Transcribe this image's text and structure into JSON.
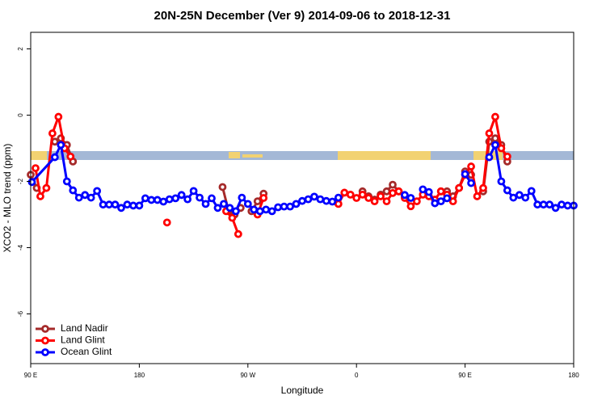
{
  "chart_data": {
    "type": "line",
    "title": "20N-25N December (Ver 9)   2014-09-06 to 2018-12-31",
    "x_label": "Longitude",
    "y_label": "XCO2 - MLO trend (ppm)",
    "xlim": [
      90,
      540
    ],
    "xticks": [
      {
        "value": 90,
        "label": "90 E"
      },
      180,
      {
        "value": 270,
        "label": "90 W"
      },
      {
        "value": 360,
        "label": "0"
      },
      {
        "value": 450,
        "label": "90 E"
      },
      {
        "value": 540,
        "label": "180"
      }
    ],
    "ylim": [
      -7.5,
      2.5
    ],
    "yticks": [
      2,
      0,
      -2,
      -4,
      -6
    ],
    "legend": "bottomleft",
    "series": [
      {
        "name": "Land Nadir",
        "color": "#a52a2a",
        "x": [
          90,
          95,
          100,
          110,
          115,
          120,
          125,
          130,
          249,
          254,
          259,
          264,
          268,
          273,
          278,
          283,
          288,
          365,
          370,
          375,
          380,
          385,
          390,
          395,
          400,
          405,
          430,
          435,
          440,
          445,
          450,
          455,
          460,
          465,
          470,
          475,
          480,
          485
        ],
        "values": [
          -1.8,
          -2.2,
          null,
          -0.8,
          -0.7,
          -0.9,
          -1.4,
          null,
          -2.17,
          -2.9,
          -3.0,
          -2.8,
          null,
          -2.9,
          -2.6,
          -2.37,
          null,
          -2.3,
          -2.45,
          -2.55,
          -2.4,
          -2.3,
          -2.1,
          -2.3,
          -2.45,
          null,
          -2.3,
          -2.3,
          -2.45,
          -2.2,
          -1.7,
          -1.8,
          null,
          -2.3,
          -0.8,
          -0.7,
          -0.9,
          -1.4
        ]
      },
      {
        "name": "Land Glint",
        "color": "#ff0000",
        "x": [
          94,
          98,
          103,
          108,
          113,
          118,
          123,
          128,
          203,
          208,
          252,
          257,
          262,
          267,
          278,
          283,
          288,
          345,
          350,
          355,
          360,
          365,
          370,
          375,
          380,
          385,
          390,
          395,
          400,
          405,
          410,
          415,
          420,
          425,
          430,
          435,
          440,
          445,
          450,
          455,
          460,
          465,
          470,
          475,
          480,
          485
        ],
        "values": [
          -1.6,
          -2.45,
          -2.2,
          -0.55,
          -0.05,
          -1.0,
          -1.25,
          null,
          -3.24,
          null,
          -2.9,
          -3.1,
          -3.59,
          null,
          -3.0,
          -2.5,
          null,
          -2.68,
          -2.34,
          -2.4,
          -2.5,
          -2.4,
          -2.5,
          -2.6,
          -2.45,
          -2.6,
          -2.35,
          -2.3,
          -2.5,
          -2.75,
          -2.6,
          -2.4,
          -2.45,
          -2.55,
          -2.3,
          -2.4,
          -2.6,
          -2.2,
          -1.8,
          -1.55,
          -2.45,
          -2.2,
          -0.55,
          -0.05,
          -1.0,
          -1.25
        ]
      },
      {
        "name": "Ocean Glint",
        "color": "#0000ff",
        "x": [
          91,
          110,
          115,
          120,
          125,
          130,
          135,
          140,
          145,
          150,
          155,
          160,
          165,
          170,
          175,
          180,
          185,
          190,
          195,
          200,
          205,
          210,
          215,
          220,
          225,
          230,
          235,
          240,
          245,
          250,
          255,
          260,
          265,
          270,
          275,
          280,
          285,
          290,
          295,
          300,
          305,
          310,
          315,
          320,
          325,
          330,
          335,
          340,
          345,
          350,
          400,
          405,
          410,
          415,
          420,
          425,
          430,
          435,
          440,
          450,
          455,
          460,
          470,
          475,
          480,
          485,
          490,
          495,
          500,
          505,
          510,
          515,
          520,
          525,
          530,
          535,
          540
        ],
        "values": [
          -2.02,
          -1.27,
          -0.9,
          -2.0,
          -2.27,
          -2.49,
          -2.41,
          -2.49,
          -2.29,
          -2.7,
          -2.7,
          -2.7,
          -2.8,
          -2.7,
          -2.73,
          -2.73,
          -2.51,
          -2.56,
          -2.56,
          -2.61,
          -2.54,
          -2.51,
          -2.41,
          -2.54,
          -2.29,
          -2.49,
          -2.68,
          -2.51,
          -2.8,
          -2.68,
          -2.8,
          -2.9,
          -2.49,
          -2.68,
          -2.85,
          -2.9,
          -2.85,
          -2.9,
          -2.78,
          -2.76,
          -2.76,
          -2.68,
          -2.59,
          -2.54,
          -2.46,
          -2.54,
          -2.59,
          -2.61,
          -2.49,
          null,
          -2.41,
          -2.5,
          null,
          -2.24,
          -2.32,
          -2.66,
          -2.6,
          -2.51,
          null,
          -1.78,
          -2.05,
          null,
          -1.27,
          -0.9,
          -2.0,
          -2.27,
          -2.49,
          -2.41,
          -2.49,
          -2.29,
          -2.7,
          -2.7,
          -2.7,
          -2.8,
          -2.7,
          -2.73,
          -2.73
        ]
      }
    ]
  }
}
